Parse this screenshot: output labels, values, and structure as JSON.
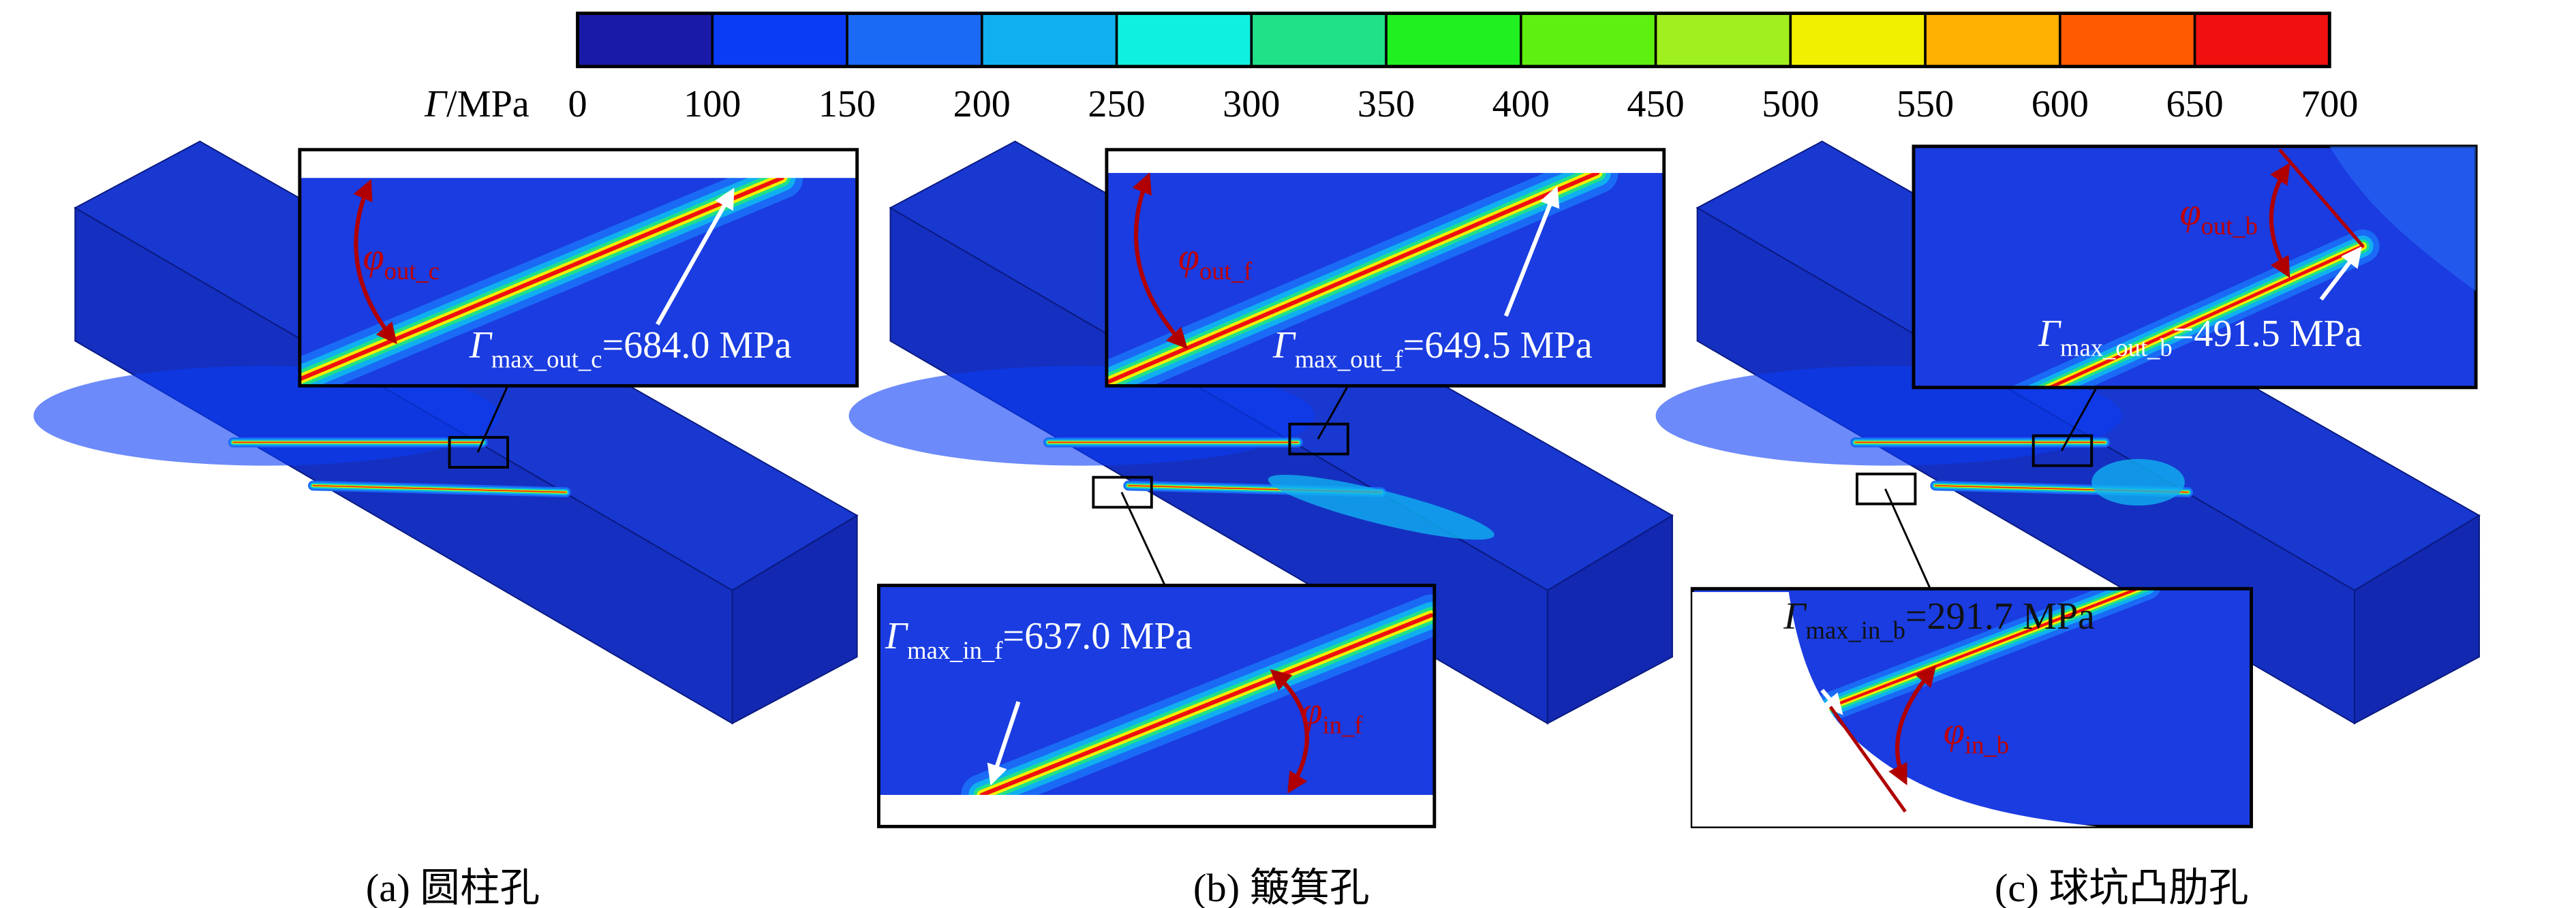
{
  "colorbar": {
    "symbol": "Γ",
    "unit": "/MPa",
    "ticks": [
      0,
      100,
      150,
      200,
      250,
      300,
      350,
      400,
      450,
      500,
      550,
      600,
      650,
      700
    ],
    "colors": [
      "#1a1aa8",
      "#0a3cf5",
      "#1a6af5",
      "#10b0f0",
      "#10f0e0",
      "#20e088",
      "#20f020",
      "#5ef010",
      "#a0f020",
      "#f0f000",
      "#ffb000",
      "#ff5a00",
      "#f01010"
    ]
  },
  "panels": [
    {
      "caption": "(a) 圆柱孔",
      "annotations": [
        {
          "symbol": "Γ",
          "subscript": "max_out_c",
          "text": "=684.0 MPa"
        },
        {
          "symbol": "φ",
          "subscript": "out_c"
        }
      ]
    },
    {
      "caption": "(b) 簸箕孔",
      "annotations": [
        {
          "symbol": "Γ",
          "subscript": "max_out_f",
          "text": "=649.5 MPa"
        },
        {
          "symbol": "φ",
          "subscript": "out_f"
        },
        {
          "symbol": "Γ",
          "subscript": "max_in_f",
          "text": "=637.0 MPa"
        },
        {
          "symbol": "φ",
          "subscript": "in_f"
        }
      ]
    },
    {
      "caption": "(c) 球坑凸肋孔",
      "annotations": [
        {
          "symbol": "Γ",
          "subscript": "max_out_b",
          "text": "=491.5 MPa"
        },
        {
          "symbol": "φ",
          "subscript": "out_b"
        },
        {
          "symbol": "Γ",
          "subscript": "max_in_b",
          "text": "=291.7 MPa"
        },
        {
          "symbol": "φ",
          "subscript": "in_b"
        }
      ]
    }
  ]
}
